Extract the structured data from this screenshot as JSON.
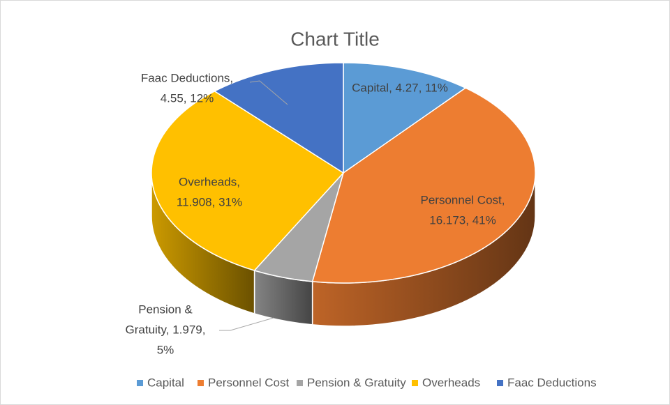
{
  "chart_data": {
    "type": "pie3d",
    "title": "Chart Title",
    "categories": [
      "Capital",
      "Personnel Cost",
      "Pension & Gratuity",
      "Overheads",
      "Faac Deductions"
    ],
    "values": [
      4.27,
      16.173,
      1.979,
      11.908,
      4.55
    ],
    "value_labels": [
      [
        "Capital, 4.27, 11%"
      ],
      [
        "Personnel Cost,",
        "16.173, 41%"
      ],
      [
        "Pension &",
        "Gratuity, 1.979,",
        "5%"
      ],
      [
        "Overheads,",
        "11.908, 31%"
      ],
      [
        "Faac Deductions,",
        "4.55, 12%"
      ]
    ],
    "colors": [
      "#5b9bd5",
      "#ed7d31",
      "#a5a5a5",
      "#ffc000",
      "#4472c4"
    ],
    "legend": "bottom"
  }
}
